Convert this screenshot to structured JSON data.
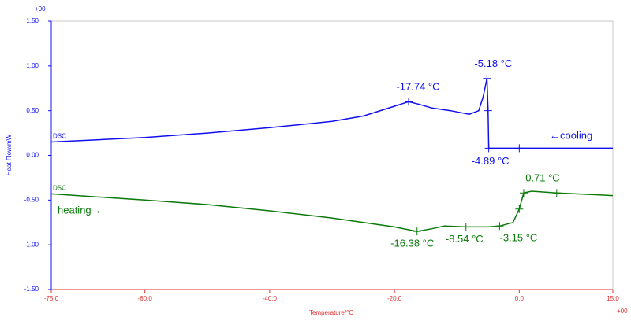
{
  "chart_data": {
    "type": "line",
    "xlabel": "Temperature/°C",
    "ylabel": "Heat Flow/mW",
    "x_multiplier": "+00",
    "y_multiplier": "+00",
    "xlim": [
      -75,
      15
    ],
    "ylim": [
      -1.5,
      1.5
    ],
    "xticks": [
      {
        "value": -75,
        "label": "-75.0"
      },
      {
        "value": -60,
        "label": "-60.0"
      },
      {
        "value": -40,
        "label": "-40.0"
      },
      {
        "value": -20,
        "label": "-20.0"
      },
      {
        "value": 0,
        "label": "0.0"
      },
      {
        "value": 15,
        "label": "15.0"
      }
    ],
    "yticks": [
      {
        "value": 1.5,
        "label": "1.50"
      },
      {
        "value": 1,
        "label": "1.00"
      },
      {
        "value": 0.5,
        "label": "0.50"
      },
      {
        "value": 0,
        "label": "0.00"
      },
      {
        "value": -0.5,
        "label": "-0.50"
      },
      {
        "value": -1,
        "label": "-1.00"
      },
      {
        "value": -1.5,
        "label": "-1.50"
      }
    ],
    "series": [
      {
        "name": "DSC",
        "label": "←cooling",
        "color": "#1010ee",
        "x": [
          -75,
          -60,
          -50,
          -40,
          -30,
          -25,
          -20,
          -17.74,
          -16,
          -14,
          -11,
          -8,
          -6.5,
          -5.8,
          -5.18,
          -5.0,
          -4.89,
          0,
          15
        ],
        "y": [
          0.15,
          0.2,
          0.25,
          0.31,
          0.38,
          0.44,
          0.55,
          0.6,
          0.57,
          0.53,
          0.5,
          0.46,
          0.5,
          0.65,
          0.86,
          0.5,
          0.08,
          0.08,
          0.08
        ]
      },
      {
        "name": "DSC",
        "label": "heating→",
        "color": "#0a7a0a",
        "x": [
          -75,
          -60,
          -50,
          -40,
          -30,
          -20,
          -16.38,
          -14,
          -12,
          -8.54,
          -5,
          -3.15,
          -1,
          0,
          0.71,
          2,
          6,
          15
        ],
        "y": [
          -0.43,
          -0.5,
          -0.55,
          -0.62,
          -0.7,
          -0.8,
          -0.85,
          -0.82,
          -0.79,
          -0.8,
          -0.8,
          -0.79,
          -0.75,
          -0.6,
          -0.42,
          -0.4,
          -0.42,
          -0.45
        ]
      }
    ],
    "annotations": [
      {
        "text": "-17.74 °C",
        "x": -17.74,
        "y": 0.6,
        "series": 0
      },
      {
        "text": "-5.18 °C",
        "x": -5.18,
        "y": 0.86,
        "series": 0
      },
      {
        "text": "-4.89 °C",
        "x": -4.89,
        "y": 0.08,
        "series": 0
      },
      {
        "text": "-16.38 °C",
        "x": -16.38,
        "y": -0.85,
        "series": 1
      },
      {
        "text": "-8.54 °C",
        "x": -8.54,
        "y": -0.8,
        "series": 1
      },
      {
        "text": "-3.15 °C",
        "x": -3.15,
        "y": -0.79,
        "series": 1
      },
      {
        "text": "0.71 °C",
        "x": 0.71,
        "y": -0.42,
        "series": 1
      }
    ],
    "markers": [
      {
        "x": -5.0,
        "y": 0.5,
        "series": 0
      },
      {
        "x": 0,
        "y": 0.08,
        "series": 0
      },
      {
        "x": 0,
        "y": -0.6,
        "series": 1
      },
      {
        "x": 6,
        "y": -0.42,
        "series": 1
      }
    ]
  }
}
